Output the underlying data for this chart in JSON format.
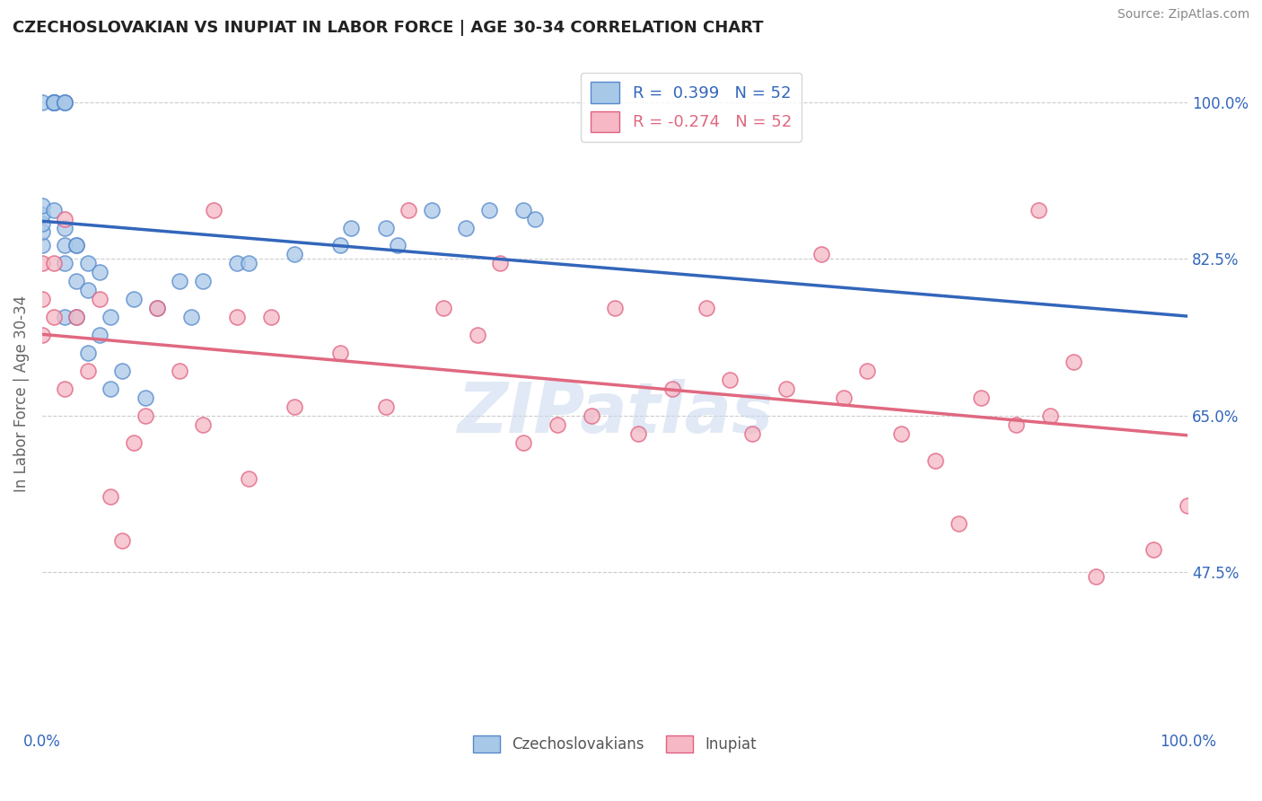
{
  "title": "CZECHOSLOVAKIAN VS INUPIAT IN LABOR FORCE | AGE 30-34 CORRELATION CHART",
  "source": "Source: ZipAtlas.com",
  "ylabel": "In Labor Force | Age 30-34",
  "xlim": [
    0.0,
    1.0
  ],
  "ylim": [
    0.3,
    1.05
  ],
  "ytick_positions": [
    0.475,
    0.65,
    0.825,
    1.0
  ],
  "ytick_labels": [
    "47.5%",
    "65.0%",
    "82.5%",
    "100.0%"
  ],
  "xtick_positions": [
    0.0,
    0.1,
    0.2,
    0.3,
    0.4,
    0.5,
    0.6,
    0.7,
    0.8,
    0.9,
    1.0
  ],
  "xtick_labels": [
    "0.0%",
    "",
    "",
    "",
    "",
    "",
    "",
    "",
    "",
    "",
    "100.0%"
  ],
  "blue_R": 0.399,
  "blue_N": 52,
  "pink_R": -0.274,
  "pink_N": 52,
  "blue_color": "#a8c8e8",
  "pink_color": "#f5b8c4",
  "blue_edge_color": "#5588cc",
  "pink_edge_color": "#e06080",
  "blue_line_color": "#3366bb",
  "pink_line_color": "#e06880",
  "watermark_text": "ZIPatlas",
  "legend_labels": [
    "Czechoslovakians",
    "Inupiat"
  ],
  "background_color": "#ffffff",
  "grid_color": "#cccccc",
  "blue_x": [
    0.0,
    0.0,
    0.0,
    0.0,
    0.0,
    0.0,
    0.01,
    0.01,
    0.01,
    0.01,
    0.01,
    0.01,
    0.01,
    0.01,
    0.01,
    0.02,
    0.02,
    0.02,
    0.02,
    0.02,
    0.02,
    0.02,
    0.03,
    0.03,
    0.03,
    0.03,
    0.04,
    0.04,
    0.04,
    0.05,
    0.05,
    0.06,
    0.06,
    0.07,
    0.08,
    0.09,
    0.1,
    0.12,
    0.13,
    0.14,
    0.17,
    0.18,
    0.22,
    0.26,
    0.27,
    0.3,
    0.31,
    0.34,
    0.37,
    0.39,
    0.42,
    0.43
  ],
  "blue_y": [
    0.84,
    0.855,
    0.865,
    0.875,
    0.885,
    1.0,
    1.0,
    1.0,
    1.0,
    1.0,
    1.0,
    1.0,
    1.0,
    1.0,
    0.88,
    1.0,
    1.0,
    1.0,
    0.86,
    0.84,
    0.82,
    0.76,
    0.84,
    0.8,
    0.84,
    0.76,
    0.82,
    0.79,
    0.72,
    0.81,
    0.74,
    0.76,
    0.68,
    0.7,
    0.78,
    0.67,
    0.77,
    0.8,
    0.76,
    0.8,
    0.82,
    0.82,
    0.83,
    0.84,
    0.86,
    0.86,
    0.84,
    0.88,
    0.86,
    0.88,
    0.88,
    0.87
  ],
  "pink_x": [
    0.0,
    0.0,
    0.0,
    0.01,
    0.01,
    0.02,
    0.02,
    0.03,
    0.04,
    0.05,
    0.06,
    0.07,
    0.08,
    0.09,
    0.1,
    0.12,
    0.14,
    0.15,
    0.17,
    0.18,
    0.2,
    0.22,
    0.26,
    0.3,
    0.32,
    0.35,
    0.38,
    0.4,
    0.42,
    0.45,
    0.48,
    0.5,
    0.52,
    0.55,
    0.58,
    0.6,
    0.62,
    0.65,
    0.68,
    0.7,
    0.72,
    0.75,
    0.78,
    0.8,
    0.82,
    0.85,
    0.87,
    0.88,
    0.9,
    0.92,
    0.97,
    1.0
  ],
  "pink_y": [
    0.82,
    0.78,
    0.74,
    0.82,
    0.76,
    0.87,
    0.68,
    0.76,
    0.7,
    0.78,
    0.56,
    0.51,
    0.62,
    0.65,
    0.77,
    0.7,
    0.64,
    0.88,
    0.76,
    0.58,
    0.76,
    0.66,
    0.72,
    0.66,
    0.88,
    0.77,
    0.74,
    0.82,
    0.62,
    0.64,
    0.65,
    0.77,
    0.63,
    0.68,
    0.77,
    0.69,
    0.63,
    0.68,
    0.83,
    0.67,
    0.7,
    0.63,
    0.6,
    0.53,
    0.67,
    0.64,
    0.88,
    0.65,
    0.71,
    0.47,
    0.5,
    0.55
  ]
}
